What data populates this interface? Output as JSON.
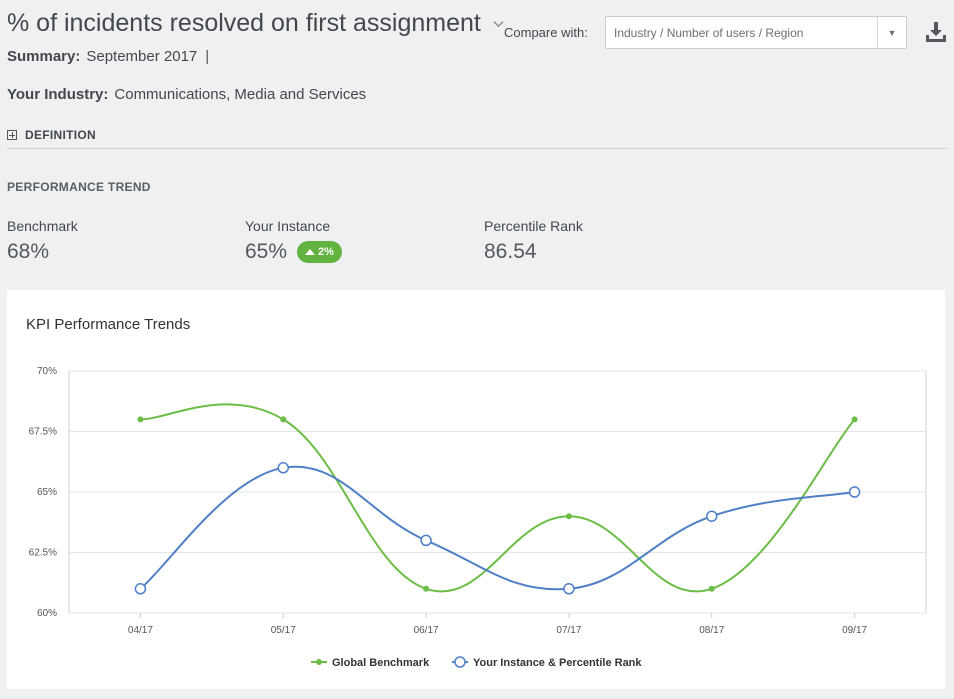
{
  "header": {
    "title": "% of incidents resolved on first assignment",
    "summary_label": "Summary:",
    "summary_value": "September 2017",
    "summary_sep": "|",
    "industry_label": "Your Industry:",
    "industry_value": "Communications, Media and Services"
  },
  "compare": {
    "label": "Compare with:",
    "placeholder": "Industry / Number of users / Region"
  },
  "sections": {
    "definition": "DEFINITION",
    "performance_trend": "PERFORMANCE TREND"
  },
  "metrics": {
    "benchmark_label": "Benchmark",
    "benchmark_value": "68%",
    "instance_label": "Your Instance",
    "instance_value": "65%",
    "instance_delta": "2%",
    "percentile_label": "Percentile Rank",
    "percentile_value": "86.54"
  },
  "colors": {
    "benchmark": "#6cbd45",
    "instance": "#4f7fc6",
    "badge": "#62b340"
  },
  "chart_data": {
    "type": "line",
    "title": "KPI Performance Trends",
    "categories": [
      "04/17",
      "05/17",
      "06/17",
      "07/17",
      "08/17",
      "09/17"
    ],
    "series": [
      {
        "name": "Global Benchmark",
        "values": [
          68,
          68,
          61,
          64,
          61,
          68
        ]
      },
      {
        "name": "Your Instance & Percentile Rank",
        "values": [
          61,
          66,
          63,
          61,
          64,
          65
        ]
      }
    ],
    "ylim": [
      60,
      70
    ],
    "yticks": [
      "60%",
      "62.5%",
      "65%",
      "67.5%",
      "70%"
    ],
    "ytick_values": [
      60,
      62.5,
      65,
      67.5,
      70
    ],
    "grid": true,
    "legend": "bottom"
  }
}
